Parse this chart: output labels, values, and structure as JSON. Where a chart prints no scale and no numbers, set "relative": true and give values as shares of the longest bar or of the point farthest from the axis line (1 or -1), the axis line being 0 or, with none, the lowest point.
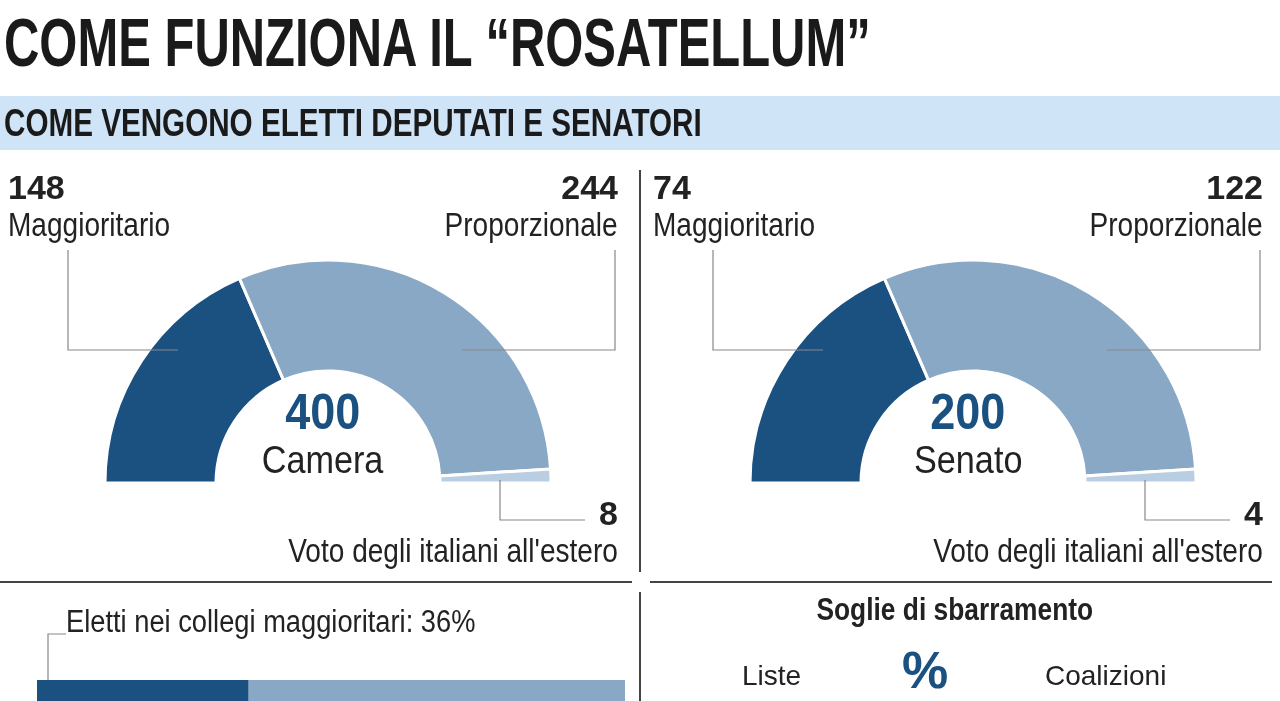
{
  "chart_data": [
    {
      "type": "donut",
      "title": "COME FUNZIONA IL “ROSATELLUM”",
      "subtitle": "COME VENGONO ELETTI DEPUTATI E SENATORI",
      "categories": [
        "Maggioritario",
        "Proporzionale",
        "Voto degli italiani all'estero"
      ],
      "values": [
        148,
        244,
        8
      ],
      "colors": [
        "#1b5180",
        "#88a8c5",
        "#b9cee2"
      ],
      "data_labels": true,
      "annotations": [
        "400",
        "Camera"
      ]
    },
    {
      "type": "donut",
      "categories": [
        "Maggioritario",
        "Proporzionale",
        "Voto degli italiani all'estero"
      ],
      "values": [
        74,
        122,
        4
      ],
      "colors": [
        "#1b5180",
        "#88a8c5",
        "#b9cee2"
      ],
      "data_labels": true,
      "annotations": [
        "200",
        "Senato"
      ]
    },
    {
      "type": "bar",
      "orientation": "horizontal",
      "stacked": true,
      "relative": true,
      "categories": [
        null
      ],
      "series": [
        {
          "color": "#1b5180",
          "values": [
            0.36
          ]
        },
        {
          "color": "#88a8c5",
          "values": [
            0.64
          ]
        }
      ],
      "annotations": [
        "Eletti nei collegi maggioritari: 36%"
      ]
    },
    {
      "type": "other",
      "title": "Soglie di sbarramento",
      "annotations": [
        "Liste",
        "%",
        "Coalizioni"
      ]
    }
  ]
}
